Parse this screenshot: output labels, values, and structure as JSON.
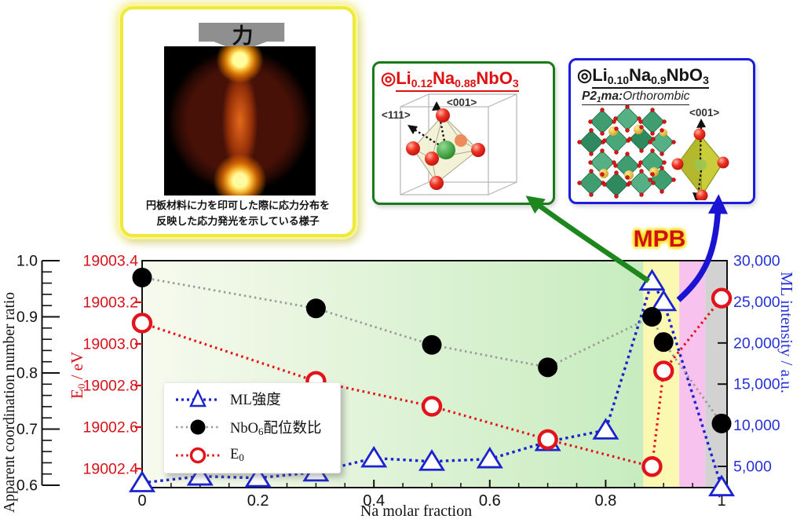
{
  "photo_panel": {
    "force_label": "力",
    "caption_line1": "円板材料に力を印可した際に応力分布を",
    "caption_line2": "反映した応力発光を示している様子"
  },
  "green_panel": {
    "mark": "◎",
    "f1": "Li",
    "s1": "0.12",
    "f2": "Na",
    "s2": "0.88",
    "f3": "NbO",
    "s3": "3",
    "dir_001": "<001>",
    "dir_111": "<111>"
  },
  "blue_panel": {
    "mark": "◎",
    "f1": "Li",
    "s1": "0.10",
    "f2": "Na",
    "s2": "0.9",
    "f3": "NbO",
    "s3": "3",
    "sg_main": "P2",
    "sg_sub": "1",
    "sg_rest": "ma:",
    "sg_system": "Orthorombic",
    "dir_001": "<001>"
  },
  "mpb_label": "MPB",
  "legend": {
    "item1": "ML強度",
    "item2_pre": "NbO",
    "item2_sub": "6",
    "item2_post": "配位数比",
    "item3_main": "E",
    "item3_sub": "0"
  },
  "axis_labels": {
    "left": "Apparent coordination number ratio",
    "e0_main": "E",
    "e0_sub": "0",
    "e0_rest": " / eV",
    "right": "ML intensity / a.u.",
    "x": "Na molar fraction"
  },
  "chart_data": {
    "type": "line",
    "xlabel": "Na molar fraction",
    "xlim": [
      0,
      1.0095
    ],
    "x_ticks": [
      0,
      0.2,
      0.4,
      0.6,
      0.8,
      1
    ],
    "x_tick_labels": [
      "0",
      "0.2",
      "0.4",
      "0.6",
      "0.8",
      "1"
    ],
    "x_minor_step": 0.05,
    "grid": false,
    "legend_position": "lower-left-inside",
    "gradient": {
      "left": "#f7faee",
      "right": "#c7ecbf"
    },
    "bands": [
      {
        "from": 0,
        "to": 0.865,
        "fill": "gradient",
        "meaning": "green gradient region"
      },
      {
        "from": 0.865,
        "to": 0.927,
        "fill": "#fbf8b2",
        "meaning": "MPB yellow band"
      },
      {
        "from": 0.927,
        "to": 0.972,
        "fill": "#f8c2ee",
        "meaning": "pink band"
      },
      {
        "from": 0.972,
        "to": 1.0095,
        "fill": "#d2d2d2",
        "meaning": "gray band"
      }
    ],
    "axes": {
      "ratio": {
        "label": "Apparent coordination number ratio",
        "side": "outer-left",
        "color": "#111111",
        "top": 1.0,
        "bottom": 0.5958,
        "ticks": [
          1.0,
          0.9,
          0.8,
          0.7,
          0.6
        ],
        "tick_labels": [
          "1.0",
          "0.9",
          "0.8",
          "0.7",
          "0.6"
        ],
        "minor_step": 0.02
      },
      "e0": {
        "label": "E0 / eV",
        "side": "left",
        "color": "#d9121a",
        "top": 19003.4,
        "bottom": 19002.309,
        "ticks": [
          19003.4,
          19003.2,
          19003.0,
          19002.8,
          19002.6,
          19002.4
        ],
        "tick_labels": [
          "19003.4",
          "19003.2",
          "19003.0",
          "19002.8",
          "19002.6",
          "19002.4"
        ]
      },
      "ml": {
        "label": "ML intensity / a.u.",
        "side": "right",
        "color": "#2431d8",
        "top": 30000,
        "bottom": 2424,
        "ticks": [
          30000,
          25000,
          20000,
          15000,
          10000,
          5000
        ],
        "tick_labels": [
          "30,000",
          "25,000",
          "20,000",
          "15,000",
          "10,000",
          "5,000"
        ]
      }
    },
    "series": [
      {
        "name": "ML強度",
        "axis": "ml",
        "marker": "open-triangle",
        "marker_color": "#1b22cf",
        "line_color": "#1b22cf",
        "x": [
          0,
          0.1,
          0.2,
          0.3,
          0.4,
          0.5,
          0.6,
          0.7,
          0.8,
          0.88,
          0.9,
          1
        ],
        "y": [
          3000,
          3800,
          3600,
          4300,
          6000,
          5600,
          5900,
          8000,
          9400,
          27500,
          25000,
          2500
        ]
      },
      {
        "name": "NbO6配位数比",
        "axis": "ratio",
        "marker": "filled-circle",
        "marker_color": "#000000",
        "line_color": "#9a9a9a",
        "x": [
          0,
          0.3,
          0.5,
          0.7,
          0.88,
          0.9,
          1
        ],
        "y": [
          0.97,
          0.915,
          0.85,
          0.81,
          0.9,
          0.855,
          0.71
        ]
      },
      {
        "name": "E0",
        "axis": "e0",
        "marker": "open-circle",
        "marker_color": "#e3131b",
        "line_color": "#e3131b",
        "x": [
          0,
          0.3,
          0.5,
          0.7,
          0.88,
          0.9,
          1
        ],
        "y": [
          19003.1,
          19002.82,
          19002.7,
          19002.54,
          19002.41,
          19002.87,
          19003.22
        ]
      }
    ],
    "annotations": [
      {
        "text": "MPB",
        "x": 0.89,
        "color": "#cf1016",
        "halo": "#ffe400"
      }
    ]
  }
}
